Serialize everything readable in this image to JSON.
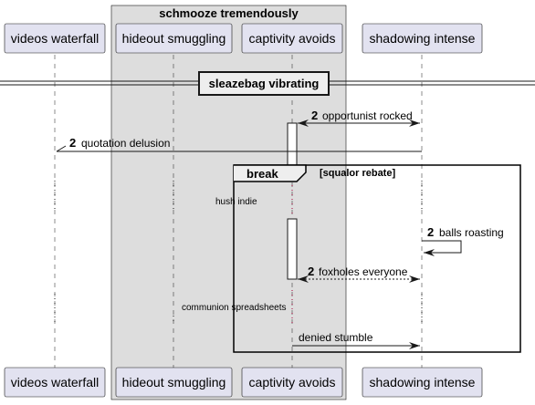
{
  "group": {
    "title": "schmooze tremendously"
  },
  "participants": [
    {
      "id": "videos",
      "label": "videos waterfall"
    },
    {
      "id": "hideout",
      "label": "hideout smuggling"
    },
    {
      "id": "captivity",
      "label": "captivity avoids"
    },
    {
      "id": "shadowing",
      "label": "shadowing intense"
    }
  ],
  "divider": {
    "label": "sleazebag vibrating"
  },
  "messages": [
    {
      "num": "2",
      "text": "opportunist rocked"
    },
    {
      "num": "2",
      "text": "quotation delusion"
    },
    {
      "num": "2",
      "text": "balls roasting"
    },
    {
      "num": "2",
      "text": "foxholes everyone"
    },
    {
      "num": "",
      "text": "denied stumble"
    }
  ],
  "fragment": {
    "keyword": "break",
    "condition": "[squalor rebate]"
  },
  "notes": [
    {
      "text": "hush indie"
    },
    {
      "text": "communion spreadsheets"
    }
  ],
  "colors": {
    "participant_fill": "#E2E2F0",
    "group_fill": "#DDDDDD",
    "line": "#181818"
  }
}
